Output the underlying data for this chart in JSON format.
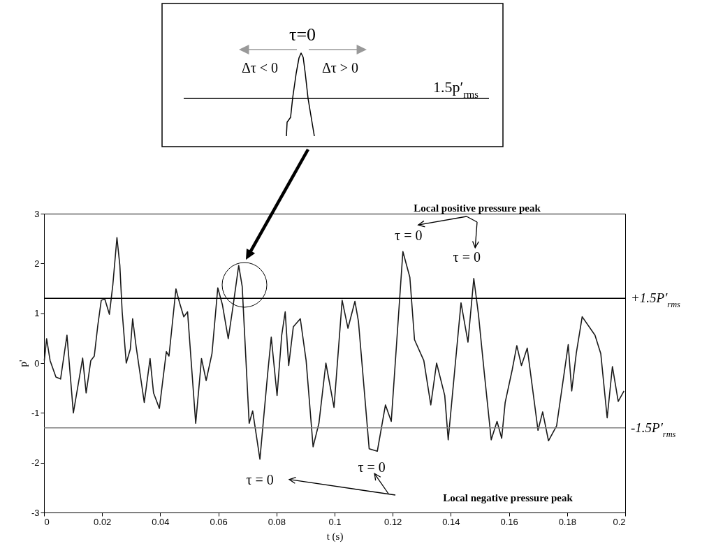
{
  "chart_data": {
    "type": "line",
    "xlabel": "t (s)",
    "ylabel": "p'",
    "color": "#1a1a1a",
    "x": [
      0.0001,
      0.0009,
      0.0021,
      0.0041,
      0.0057,
      0.0079,
      0.0101,
      0.0133,
      0.0145,
      0.0161,
      0.0173,
      0.0185,
      0.0197,
      0.0209,
      0.0225,
      0.0237,
      0.0251,
      0.0261,
      0.0269,
      0.0283,
      0.0297,
      0.0305,
      0.0317,
      0.0345,
      0.0365,
      0.0377,
      0.0397,
      0.0421,
      0.043,
      0.0454,
      0.0466,
      0.0481,
      0.0494,
      0.0522,
      0.0542,
      0.0558,
      0.0578,
      0.0598,
      0.0614,
      0.0634,
      0.065,
      0.067,
      0.0682,
      0.0706,
      0.0718,
      0.0743,
      0.077,
      0.0782,
      0.0802,
      0.0818,
      0.083,
      0.0842,
      0.0858,
      0.0882,
      0.0902,
      0.0926,
      0.0946,
      0.097,
      0.0998,
      0.1026,
      0.1046,
      0.107,
      0.1082,
      0.1119,
      0.1147,
      0.1175,
      0.1195,
      0.1235,
      0.1259,
      0.1275,
      0.1307,
      0.1331,
      0.1351,
      0.1379,
      0.1391,
      0.1435,
      0.1459,
      0.1479,
      0.1495,
      0.1515,
      0.1539,
      0.1559,
      0.1575,
      0.1587,
      0.1611,
      0.1627,
      0.1643,
      0.1663,
      0.17,
      0.1716,
      0.1736,
      0.1764,
      0.1804,
      0.1816,
      0.1832,
      0.1852,
      0.1896,
      0.1916,
      0.1938,
      0.1956,
      0.1976,
      0.1996
    ],
    "values": [
      0.05,
      0.49,
      0.05,
      -0.28,
      -0.32,
      0.56,
      -1.0,
      0.1,
      -0.6,
      0.05,
      0.14,
      0.75,
      1.26,
      1.29,
      0.98,
      1.58,
      2.52,
      1.96,
      1.03,
      0.0,
      0.28,
      0.89,
      0.33,
      -0.79,
      0.09,
      -0.6,
      -0.91,
      0.23,
      0.14,
      1.49,
      1.22,
      0.93,
      1.03,
      -1.21,
      0.09,
      -0.35,
      0.19,
      1.51,
      1.17,
      0.49,
      1.12,
      1.96,
      1.54,
      -1.21,
      -0.96,
      -1.93,
      -0.19,
      0.52,
      -0.65,
      0.56,
      1.03,
      -0.05,
      0.73,
      0.89,
      0.05,
      -1.68,
      -1.21,
      0.0,
      -0.89,
      1.26,
      0.7,
      1.24,
      0.84,
      -1.72,
      -1.77,
      -0.84,
      -1.17,
      2.24,
      1.72,
      0.47,
      0.05,
      -0.84,
      0.0,
      -0.65,
      -1.54,
      1.21,
      0.42,
      1.7,
      0.98,
      -0.19,
      -1.54,
      -1.17,
      -1.51,
      -0.79,
      -0.14,
      0.35,
      -0.05,
      0.3,
      -1.35,
      -0.98,
      -1.56,
      -1.26,
      0.37,
      -0.56,
      0.21,
      0.93,
      0.56,
      0.19,
      -1.1,
      -0.07,
      -0.77,
      -0.56
    ],
    "xlim": [
      0,
      0.2
    ],
    "ylim": [
      -3,
      3
    ],
    "xticks": [
      0,
      0.02,
      0.04,
      0.06,
      0.08,
      0.1,
      0.12,
      0.14,
      0.16,
      0.18,
      0.2
    ],
    "yticks": [
      -3,
      -2,
      -1,
      0,
      1,
      2,
      3
    ],
    "ref_lines": [
      {
        "axis": "y",
        "value": 1.3,
        "label": "+1.5P′$_{rms}$",
        "color": "#000000"
      },
      {
        "axis": "y",
        "value": -1.3,
        "label": "-1.5P′$_{rms}$",
        "color": "#808080"
      }
    ],
    "annotations": [
      {
        "text": "τ = 0",
        "x": 0.1235,
        "y": 2.24
      },
      {
        "text": "τ = 0",
        "x": 0.1479,
        "y": 1.7
      },
      {
        "text": "τ = 0",
        "x": 0.0743,
        "y": -1.93
      },
      {
        "text": "τ = 0",
        "x": 0.1147,
        "y": -1.77
      },
      "Local positive pressure peak",
      "Local negative pressure peak",
      "τ=0",
      "Δτ < 0",
      "Δτ > 0",
      "1.5p′$_{rms}$"
    ]
  }
}
